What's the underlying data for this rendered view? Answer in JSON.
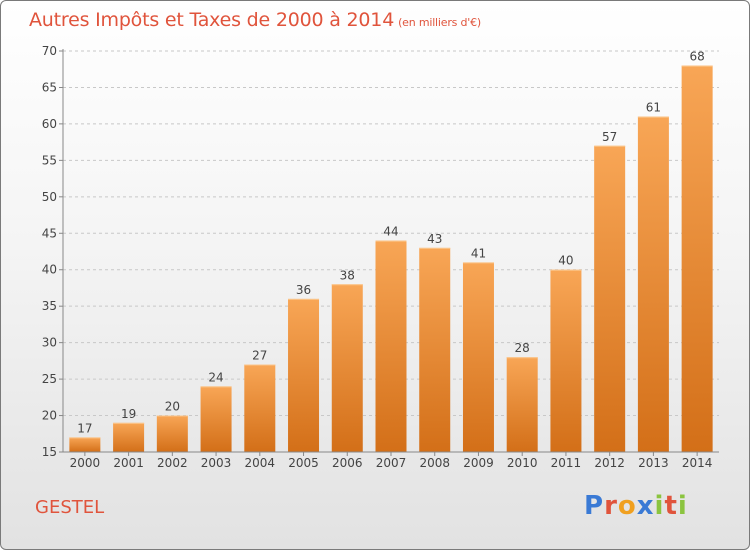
{
  "header": {
    "title": "Autres Impôts et Taxes de 2000 à 2014",
    "subtitle": "(en milliers d'€)"
  },
  "footer": {
    "commune": "GESTEL",
    "logo_text": "Proxiti",
    "logo_colors": [
      "#3a7ad5",
      "#e0543c",
      "#f0a020",
      "#3a7ad5",
      "#8bc43f",
      "#e0543c",
      "#8bc43f"
    ]
  },
  "colors": {
    "bar_light": "#f8a656",
    "bar_dark": "#d36f18",
    "grid": "#c8c8c8",
    "title": "#e0543c"
  },
  "chart_data": {
    "type": "bar",
    "title": "Autres Impôts et Taxes de 2000 à 2014",
    "categories": [
      "2000",
      "2001",
      "2002",
      "2003",
      "2004",
      "2005",
      "2006",
      "2007",
      "2008",
      "2009",
      "2010",
      "2011",
      "2012",
      "2013",
      "2014"
    ],
    "values": [
      17,
      19,
      20,
      24,
      27,
      36,
      38,
      44,
      43,
      41,
      28,
      40,
      57,
      61,
      68
    ],
    "ylim": [
      15,
      70
    ],
    "yticks": [
      15,
      20,
      25,
      30,
      35,
      40,
      45,
      50,
      55,
      60,
      65,
      70
    ],
    "grid": true,
    "data_labels": true
  }
}
